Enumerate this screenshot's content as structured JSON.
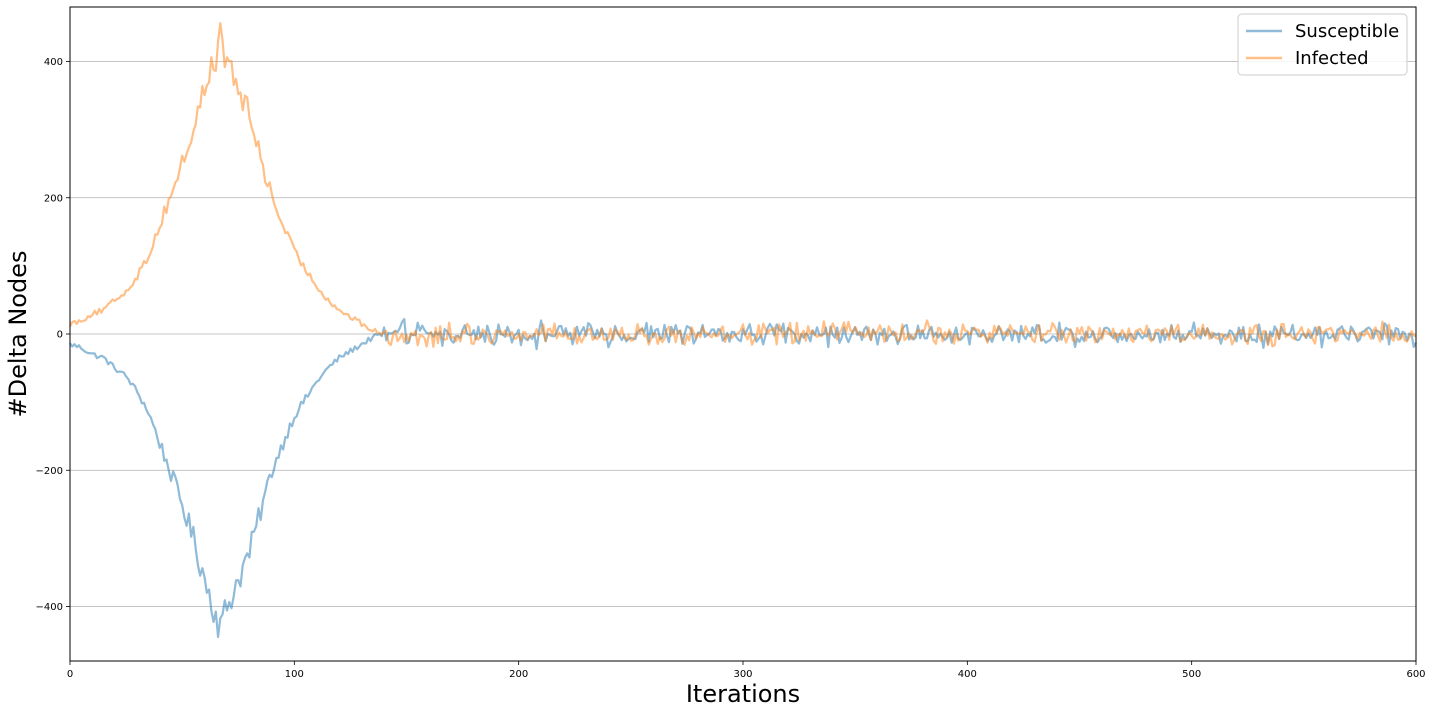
{
  "chart_data": {
    "type": "line",
    "title": "",
    "xlabel": "Iterations",
    "ylabel": "#Delta Nodes",
    "xlim": [
      0,
      600
    ],
    "ylim": [
      -480,
      480
    ],
    "x_ticks": [
      0,
      100,
      200,
      300,
      400,
      500,
      600
    ],
    "y_ticks": [
      -400,
      -200,
      0,
      200,
      400
    ],
    "grid": "y-major",
    "legend": "top-right",
    "series": [
      {
        "name": "Susceptible",
        "color": "#1f77b4",
        "alpha": 0.5,
        "keypoints": [
          [
            0,
            -15
          ],
          [
            5,
            -20
          ],
          [
            10,
            -30
          ],
          [
            15,
            -35
          ],
          [
            20,
            -50
          ],
          [
            25,
            -62
          ],
          [
            30,
            -85
          ],
          [
            35,
            -115
          ],
          [
            40,
            -160
          ],
          [
            45,
            -205
          ],
          [
            50,
            -250
          ],
          [
            55,
            -300
          ],
          [
            60,
            -360
          ],
          [
            65,
            -410
          ],
          [
            67,
            -432
          ],
          [
            70,
            -400
          ],
          [
            75,
            -360
          ],
          [
            80,
            -320
          ],
          [
            85,
            -260
          ],
          [
            90,
            -200
          ],
          [
            95,
            -160
          ],
          [
            100,
            -120
          ],
          [
            105,
            -95
          ],
          [
            110,
            -70
          ],
          [
            115,
            -50
          ],
          [
            120,
            -35
          ],
          [
            125,
            -25
          ],
          [
            130,
            -15
          ],
          [
            135,
            -5
          ],
          [
            140,
            0
          ],
          [
            600,
            0
          ]
        ],
        "noise_after_x": 140,
        "noise_amplitude": 15,
        "peak_min": -432,
        "peak_x": 67,
        "tail_range": [
          -50,
          38
        ]
      },
      {
        "name": "Infected",
        "color": "#ff7f0e",
        "alpha": 0.5,
        "keypoints": [
          [
            0,
            15
          ],
          [
            5,
            20
          ],
          [
            10,
            30
          ],
          [
            15,
            35
          ],
          [
            20,
            50
          ],
          [
            25,
            62
          ],
          [
            30,
            85
          ],
          [
            35,
            115
          ],
          [
            40,
            160
          ],
          [
            45,
            205
          ],
          [
            50,
            250
          ],
          [
            55,
            300
          ],
          [
            60,
            360
          ],
          [
            65,
            410
          ],
          [
            67,
            432
          ],
          [
            70,
            400
          ],
          [
            75,
            360
          ],
          [
            80,
            320
          ],
          [
            85,
            260
          ],
          [
            90,
            200
          ],
          [
            95,
            160
          ],
          [
            100,
            120
          ],
          [
            105,
            95
          ],
          [
            110,
            70
          ],
          [
            115,
            50
          ],
          [
            120,
            35
          ],
          [
            125,
            25
          ],
          [
            130,
            15
          ],
          [
            135,
            5
          ],
          [
            140,
            0
          ],
          [
            600,
            0
          ]
        ],
        "noise_after_x": 140,
        "noise_amplitude": 15,
        "peak_max": 432,
        "peak_x": 67,
        "tail_range": [
          -38,
          52
        ]
      }
    ]
  }
}
